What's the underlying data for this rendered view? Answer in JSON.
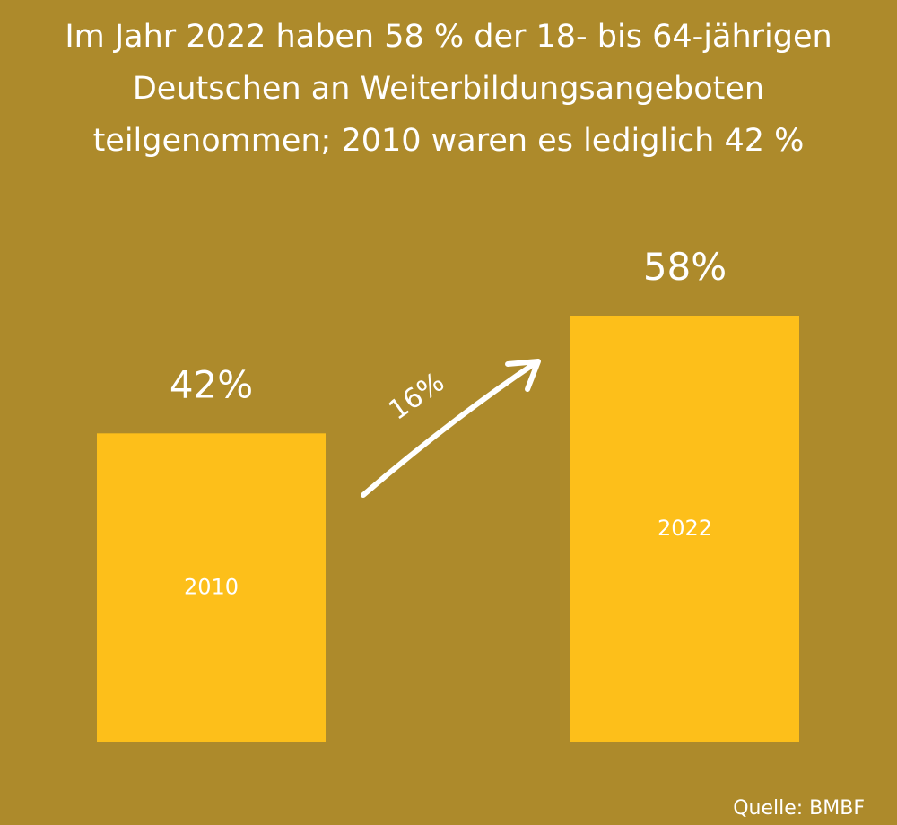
{
  "chart_data": {
    "type": "bar",
    "title": "Im Jahr 2022 haben 58 % der 18- bis 64-jährigen Deutschen an Weiterbildungsangeboten teilgenommen; 2010 waren es lediglich 42 %",
    "categories": [
      "2010",
      "2022"
    ],
    "values": [
      42,
      58
    ],
    "value_labels": [
      "42%",
      "58%"
    ],
    "color": "#fdbf1a",
    "annotation": "16%",
    "source": "Quelle: BMBF"
  }
}
